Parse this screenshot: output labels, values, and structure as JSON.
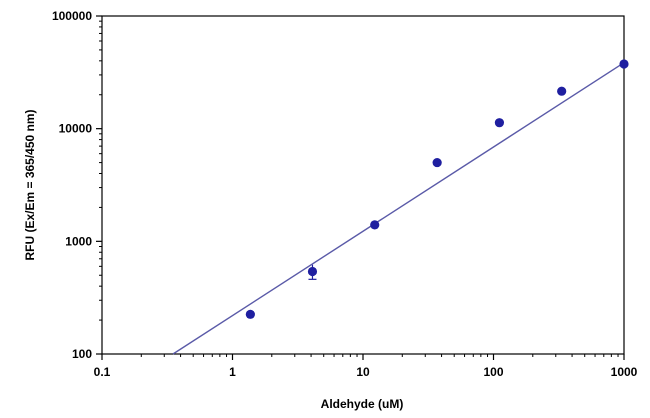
{
  "chart_data": {
    "type": "scatter",
    "title": "",
    "xlabel": "Aldehyde (uM)",
    "ylabel": "RFU (Ex/Em = 365/450 nm)",
    "x_scale": "log",
    "y_scale": "log",
    "xlim": [
      0.1,
      1000
    ],
    "ylim": [
      100,
      100000
    ],
    "x_ticks": [
      "0.1",
      "1",
      "10",
      "100",
      "1000"
    ],
    "y_ticks": [
      "100",
      "1000",
      "10000",
      "100000"
    ],
    "grid": false,
    "legend": "none",
    "colors": {
      "points": "#1f1fa0",
      "fit_line": "#5a5aa8",
      "axes": "#000000"
    },
    "series": [
      {
        "x": [
          1.37,
          4.1,
          12.3,
          37,
          111,
          333,
          1000
        ],
        "y": [
          225,
          540,
          1400,
          5000,
          11300,
          21500,
          37500
        ],
        "error": [
          null,
          80,
          null,
          null,
          null,
          null,
          null
        ]
      }
    ],
    "fit_line": {
      "x": [
        0.35,
        1000
      ],
      "y": [
        100,
        38500
      ]
    }
  }
}
